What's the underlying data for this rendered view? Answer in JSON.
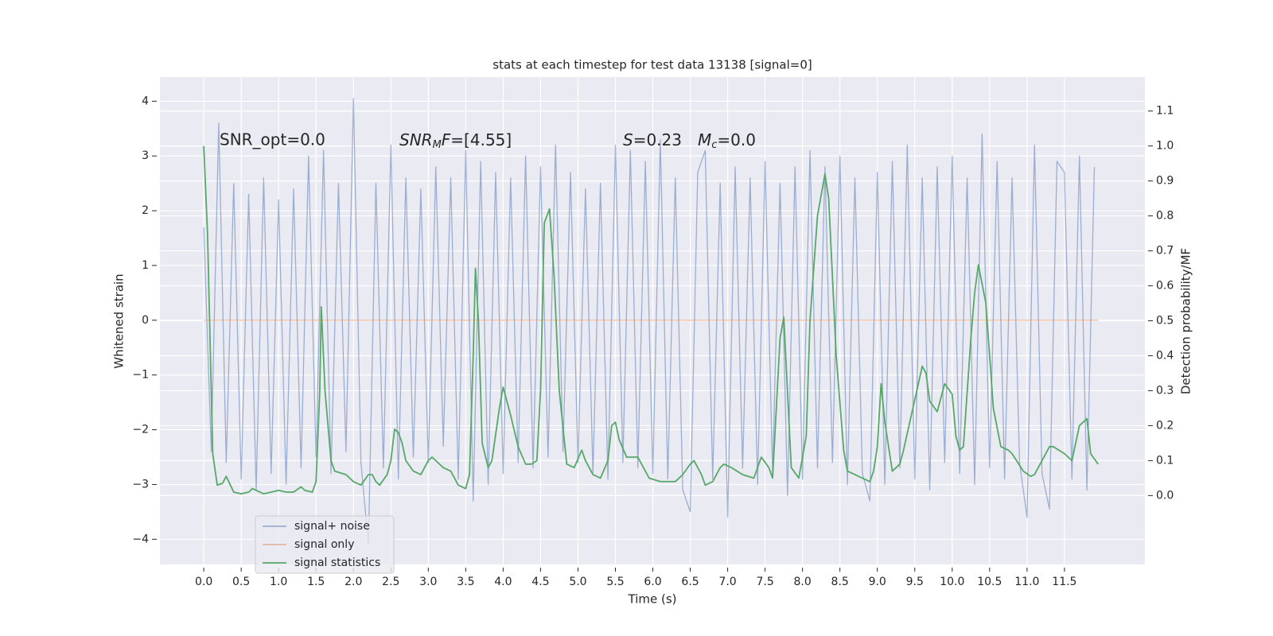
{
  "chart_data": {
    "type": "line",
    "title": "stats at each timestep for test data 13138 [signal=0]",
    "xlabel": "Time (s)",
    "ylabel": "Whitened strain",
    "y2label": "Detection probability/MF",
    "annotations": [
      [
        "SNR_opt=0.0"
      ],
      [
        "SNR",
        "M",
        "F",
        "=[4.55]"
      ],
      [
        "S",
        "=0.23"
      ],
      [
        "M",
        "c",
        "=0.0"
      ]
    ],
    "xlim": [
      -0.586,
      12.575
    ],
    "xticks": [
      {
        "value": 0,
        "label": "0.0"
      },
      0.5,
      {
        "value": 1,
        "label": "1.0"
      },
      1.5,
      {
        "value": 2,
        "label": "2.0"
      },
      2.5,
      {
        "value": 3,
        "label": "3.0"
      },
      3.5,
      {
        "value": 4,
        "label": "4.0"
      },
      4.5,
      {
        "value": 5,
        "label": "5.0"
      },
      5.5,
      {
        "value": 6,
        "label": "6.0"
      },
      6.5,
      {
        "value": 7,
        "label": "7.0"
      },
      7.5,
      {
        "value": 8,
        "label": "8.0"
      },
      8.5,
      {
        "value": 9,
        "label": "9.0"
      },
      9.5,
      {
        "value": 10,
        "label": "10.0"
      },
      10.5,
      {
        "value": 11,
        "label": "11.0"
      },
      11.5
    ],
    "ylim": [
      -4.46,
      4.44
    ],
    "yticks": [
      {
        "value": -4,
        "label": "−4"
      },
      {
        "value": -3,
        "label": "−3"
      },
      {
        "value": -2,
        "label": "−2"
      },
      {
        "value": -1,
        "label": "−1"
      },
      0,
      1,
      2,
      3,
      4
    ],
    "y2lim": [
      -0.197,
      1.197
    ],
    "y2ticks": [
      {
        "value": 0,
        "label": "0.0"
      },
      0.1,
      0.2,
      0.3,
      0.4,
      0.5,
      0.6,
      0.7,
      0.8,
      0.9,
      {
        "value": 1,
        "label": "1.0"
      },
      1.1
    ],
    "grid": true,
    "legend": "lower left",
    "series": [
      {
        "name": "signal+ noise",
        "color": "#4c72b0",
        "alpha": 0.5,
        "x": [
          0,
          0.1,
          0.2,
          0.3,
          0.4,
          0.5,
          0.6,
          0.7,
          0.8,
          0.9,
          1,
          1.1,
          1.2,
          1.3,
          1.4,
          1.5,
          1.6,
          1.7,
          1.8,
          1.9,
          2,
          2.1,
          2.2,
          2.3,
          2.4,
          2.5,
          2.6,
          2.7,
          2.8,
          2.9,
          3,
          3.1,
          3.2,
          3.3,
          3.4,
          3.5,
          3.6,
          3.7,
          3.8,
          3.9,
          4,
          4.1,
          4.2,
          4.3,
          4.4,
          4.5,
          4.6,
          4.7,
          4.8,
          4.9,
          5,
          5.1,
          5.2,
          5.3,
          5.4,
          5.5,
          5.6,
          5.7,
          5.8,
          5.9,
          6,
          6.1,
          6.2,
          6.3,
          6.4,
          6.5,
          6.6,
          6.7,
          6.8,
          6.9,
          7,
          7.1,
          7.2,
          7.3,
          7.4,
          7.5,
          7.6,
          7.7,
          7.8,
          7.9,
          8,
          8.1,
          8.2,
          8.3,
          8.4,
          8.5,
          8.6,
          8.7,
          8.8,
          8.9,
          9,
          9.1,
          9.2,
          9.3,
          9.4,
          9.5,
          9.6,
          9.7,
          9.8,
          9.9,
          10,
          10.1,
          10.2,
          10.3,
          10.4,
          10.5,
          10.6,
          10.7,
          10.8,
          10.9,
          11,
          11.1,
          11.2,
          11.3,
          11.4,
          11.5,
          11.6,
          11.7,
          11.8,
          11.9
        ],
        "values": [
          1.7,
          -2.4,
          3.6,
          -2.6,
          2.5,
          -2.9,
          2.3,
          -3.1,
          2.6,
          -2.8,
          2.2,
          -3.0,
          2.4,
          -2.7,
          3.0,
          -2.5,
          3.1,
          -2.8,
          2.5,
          -2.4,
          4.05,
          -2.6,
          -4.1,
          2.5,
          -2.7,
          3.2,
          -2.9,
          2.6,
          -2.5,
          2.4,
          -2.6,
          2.8,
          -2.3,
          2.6,
          -2.9,
          3.1,
          -3.3,
          2.9,
          -3.0,
          2.7,
          -2.8,
          2.6,
          -2.6,
          3.0,
          -2.7,
          2.8,
          -2.5,
          3.2,
          -2.4,
          2.7,
          -2.6,
          2.4,
          -2.8,
          2.5,
          -2.9,
          3.2,
          -2.6,
          3.1,
          -2.7,
          2.9,
          -2.8,
          3.3,
          -2.9,
          2.6,
          -3.1,
          -3.5,
          2.7,
          3.1,
          -2.9,
          2.5,
          -3.6,
          2.8,
          -2.7,
          2.6,
          -3.0,
          2.9,
          -2.8,
          2.5,
          -3.2,
          2.8,
          -2.9,
          3.1,
          -2.7,
          2.8,
          -2.6,
          3.0,
          -3.0,
          2.6,
          -2.8,
          -3.3,
          2.7,
          -3.0,
          2.9,
          -2.7,
          3.2,
          -2.9,
          2.6,
          -3.1,
          2.8,
          -2.6,
          3.0,
          -2.8,
          2.6,
          -3.0,
          3.4,
          -2.7,
          2.9,
          -2.9,
          2.6,
          -2.6,
          -3.6,
          3.2,
          -2.8,
          -3.45,
          2.9,
          2.7,
          -2.9,
          3.0,
          -3.1,
          2.8
        ]
      },
      {
        "name": "signal only",
        "color": "#dd8452",
        "alpha": 0.5,
        "x": [
          0,
          11.95
        ],
        "values": [
          0,
          0
        ]
      },
      {
        "name": "signal statistics",
        "color": "#55a868",
        "alpha": 1,
        "axis": "y2",
        "x": [
          0,
          0.05,
          0.12,
          0.18,
          0.25,
          0.3,
          0.4,
          0.5,
          0.6,
          0.65,
          0.8,
          0.9,
          1,
          1.1,
          1.2,
          1.3,
          1.35,
          1.45,
          1.5,
          1.55,
          1.57,
          1.62,
          1.7,
          1.75,
          1.9,
          2,
          2.1,
          2.2,
          2.25,
          2.3,
          2.35,
          2.45,
          2.5,
          2.55,
          2.6,
          2.65,
          2.7,
          2.8,
          2.9,
          3,
          3.05,
          3.1,
          3.2,
          3.3,
          3.4,
          3.5,
          3.55,
          3.6,
          3.63,
          3.67,
          3.72,
          3.8,
          3.85,
          3.95,
          4,
          4.1,
          4.2,
          4.3,
          4.38,
          4.45,
          4.5,
          4.55,
          4.62,
          4.68,
          4.75,
          4.85,
          4.95,
          5.05,
          5.1,
          5.2,
          5.3,
          5.4,
          5.45,
          5.5,
          5.55,
          5.65,
          5.8,
          5.9,
          5.95,
          6.1,
          6.3,
          6.4,
          6.5,
          6.55,
          6.65,
          6.7,
          6.8,
          6.9,
          6.95,
          7.05,
          7.2,
          7.35,
          7.45,
          7.55,
          7.6,
          7.7,
          7.75,
          7.85,
          7.95,
          8.05,
          8.1,
          8.2,
          8.3,
          8.35,
          8.45,
          8.55,
          8.6,
          8.7,
          8.8,
          8.9,
          8.95,
          9,
          9.05,
          9.1,
          9.2,
          9.3,
          9.35,
          9.6,
          9.65,
          9.7,
          9.8,
          9.9,
          10,
          10.05,
          10.1,
          10.15,
          10.25,
          10.3,
          10.35,
          10.45,
          10.55,
          10.65,
          10.75,
          10.8,
          10.95,
          11.05,
          11.1,
          11.2,
          11.3,
          11.35,
          11.5,
          11.6,
          11.7,
          11.8,
          11.85,
          11.95
        ],
        "values": [
          1.0,
          0.75,
          0.12,
          0.03,
          0.035,
          0.055,
          0.01,
          0.005,
          0.01,
          0.02,
          0.005,
          0.01,
          0.015,
          0.01,
          0.01,
          0.025,
          0.015,
          0.01,
          0.04,
          0.3,
          0.54,
          0.3,
          0.1,
          0.07,
          0.06,
          0.04,
          0.03,
          0.06,
          0.06,
          0.04,
          0.03,
          0.06,
          0.1,
          0.19,
          0.18,
          0.15,
          0.1,
          0.07,
          0.06,
          0.1,
          0.11,
          0.1,
          0.08,
          0.07,
          0.03,
          0.02,
          0.06,
          0.4,
          0.65,
          0.5,
          0.15,
          0.08,
          0.1,
          0.25,
          0.31,
          0.23,
          0.14,
          0.09,
          0.09,
          0.1,
          0.3,
          0.78,
          0.82,
          0.63,
          0.3,
          0.09,
          0.08,
          0.13,
          0.1,
          0.06,
          0.05,
          0.1,
          0.2,
          0.21,
          0.16,
          0.11,
          0.11,
          0.07,
          0.05,
          0.04,
          0.04,
          0.06,
          0.09,
          0.1,
          0.06,
          0.03,
          0.04,
          0.08,
          0.09,
          0.08,
          0.06,
          0.05,
          0.11,
          0.08,
          0.05,
          0.45,
          0.51,
          0.08,
          0.05,
          0.17,
          0.5,
          0.8,
          0.92,
          0.85,
          0.4,
          0.13,
          0.07,
          0.06,
          0.05,
          0.04,
          0.07,
          0.14,
          0.32,
          0.21,
          0.07,
          0.09,
          0.13,
          0.37,
          0.35,
          0.27,
          0.24,
          0.32,
          0.29,
          0.17,
          0.13,
          0.14,
          0.45,
          0.58,
          0.66,
          0.55,
          0.25,
          0.14,
          0.13,
          0.12,
          0.07,
          0.055,
          0.06,
          0.1,
          0.14,
          0.14,
          0.12,
          0.1,
          0.2,
          0.22,
          0.12,
          0.09
        ]
      }
    ]
  }
}
